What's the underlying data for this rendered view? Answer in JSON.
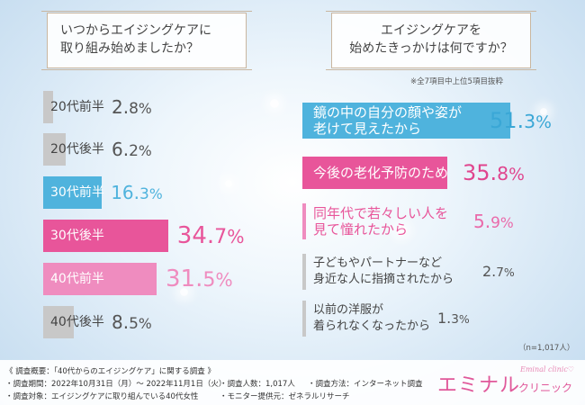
{
  "left_question": [
    "いつからエイジングケアに",
    "取り組み始めましたか？"
  ],
  "right_question": [
    "エイジングケアを",
    "始めたきっかけは何ですか？"
  ],
  "right_note": "※全7項目中上位5項目抜粋",
  "sample_note": "（n=1,017人）",
  "chart_data": [
    {
      "type": "bar",
      "orientation": "horizontal",
      "categories": [
        "20代前半",
        "20代後半",
        "30代前半",
        "30代後半",
        "40代前半",
        "40代後半"
      ],
      "values": [
        2.8,
        6.2,
        16.3,
        34.7,
        31.5,
        8.5
      ],
      "value_labels": [
        {
          "num": "2.",
          "dec": "8",
          "unit": "%"
        },
        {
          "num": "6.",
          "dec": "2",
          "unit": "%"
        },
        {
          "num": "16.",
          "dec": "3",
          "unit": "%"
        },
        {
          "num": "34.",
          "dec": "7",
          "unit": "%"
        },
        {
          "num": "31.",
          "dec": "5",
          "unit": "%"
        },
        {
          "num": "8.",
          "dec": "5",
          "unit": "%"
        }
      ],
      "colors": [
        "#c8c8c8",
        "#c8c8c8",
        "#4fb3dd",
        "#e8559a",
        "#ef8cbf",
        "#c8c8c8"
      ],
      "xlim": [
        0,
        40
      ],
      "title": "",
      "xlabel": "",
      "ylabel": ""
    },
    {
      "type": "bar",
      "orientation": "horizontal",
      "categories": [
        [
          "鏡の中の自分の顔や姿が",
          "老けて見えたから"
        ],
        [
          "今後の老化予防のため"
        ],
        [
          "同年代で若々しい人を",
          "見て憧れたから"
        ],
        [
          "子どもやパートナーなど",
          "身近な人に指摘されたから"
        ],
        [
          "以前の洋服が",
          "着られなくなったから"
        ]
      ],
      "values": [
        51.3,
        35.8,
        5.9,
        2.7,
        1.3
      ],
      "value_labels": [
        {
          "num": "51.",
          "dec": "3",
          "unit": "%"
        },
        {
          "num": "35.",
          "dec": "8",
          "unit": "%"
        },
        {
          "num": "5.",
          "dec": "9",
          "unit": "%"
        },
        {
          "num": "2.",
          "dec": "7",
          "unit": "%"
        },
        {
          "num": "1.",
          "dec": "3",
          "unit": "%"
        }
      ],
      "colors": [
        "#4fb3dd",
        "#e8559a",
        "#ef8cbf",
        "#c8c8c8",
        "#c8c8c8"
      ],
      "xlim": [
        0,
        60
      ],
      "title": "",
      "xlabel": "",
      "ylabel": ""
    }
  ],
  "footer": {
    "line1": "《 調査概要：「40代からのエイジングケア」に関する調査 》",
    "period": "・調査期間：2022年10月31日（月）～ 2022年11月1日（火）",
    "target": "・調査対象：エイジングケアに取り組んでいる40代女性",
    "count": "・調査人数：1,017人",
    "method": "・調査方法：インターネット調査",
    "provider": "・モニター提供元：ゼネラルリサーチ"
  },
  "logo": {
    "main": "エミナル",
    "sub": "クリニック",
    "script": "Eminal clinic♡"
  }
}
